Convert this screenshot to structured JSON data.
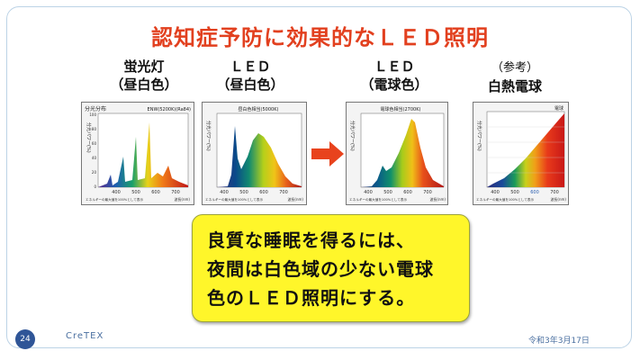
{
  "title": "認知症予防に効果的なＬＥＤ照明",
  "columns": [
    {
      "line1": "蛍光灯",
      "line2": "（昼白色）"
    },
    {
      "line1": "ＬＥＤ",
      "line2": "（昼白色）"
    },
    {
      "line1": "ＬＥＤ",
      "line2": "（電球色）"
    },
    {
      "line1": "（参考）",
      "line2": "白熱電球"
    }
  ],
  "charts": [
    {
      "header_left": "分光分布",
      "header_right": "ENW(5200K)(Ra84)",
      "ylabel": "分光パワー(%)",
      "x_ticks": [
        "400",
        "500",
        "600",
        "700"
      ],
      "footnote": "エネルギーの最大値を100%として表示",
      "xunit": "波長(nm)"
    },
    {
      "header": "昼白色相当(5000K)",
      "ylabel": "分光パワー(%)",
      "x_ticks": [
        "400",
        "500",
        "600",
        "700"
      ],
      "footnote": "エネルギーの最大値を100%として表示",
      "xunit": "波長(nm)"
    },
    {
      "header": "電球色相当(2700K)",
      "ylabel": "分光パワー(%)",
      "x_ticks": [
        "400",
        "500",
        "600",
        "700"
      ],
      "footnote": "エネルギーの最大値を100%として表示",
      "xunit": "波長(nm)"
    },
    {
      "header": "電球",
      "ylabel": "分光パワー(%)",
      "x_ticks": [
        "400",
        "500",
        "600",
        "700"
      ],
      "footnote": "エネルギーの最大値を100%として表示",
      "xunit": "波長(nm)"
    }
  ],
  "y_ticks": [
    "100",
    "80",
    "60",
    "40",
    "20",
    "0"
  ],
  "note": {
    "line1": "良質な睡眠を得るには、",
    "line2": "夜間は白色域の少ない電球",
    "line3": "色のＬＥＤ照明にする。"
  },
  "footer": {
    "page": "24",
    "brand": "CreTEX",
    "date": "令和3年3月17日"
  },
  "colors": {
    "title": "#e2401f",
    "note_bg": "#fff62a",
    "arrow": "#e8431d",
    "page_badge": "#2f5597"
  }
}
